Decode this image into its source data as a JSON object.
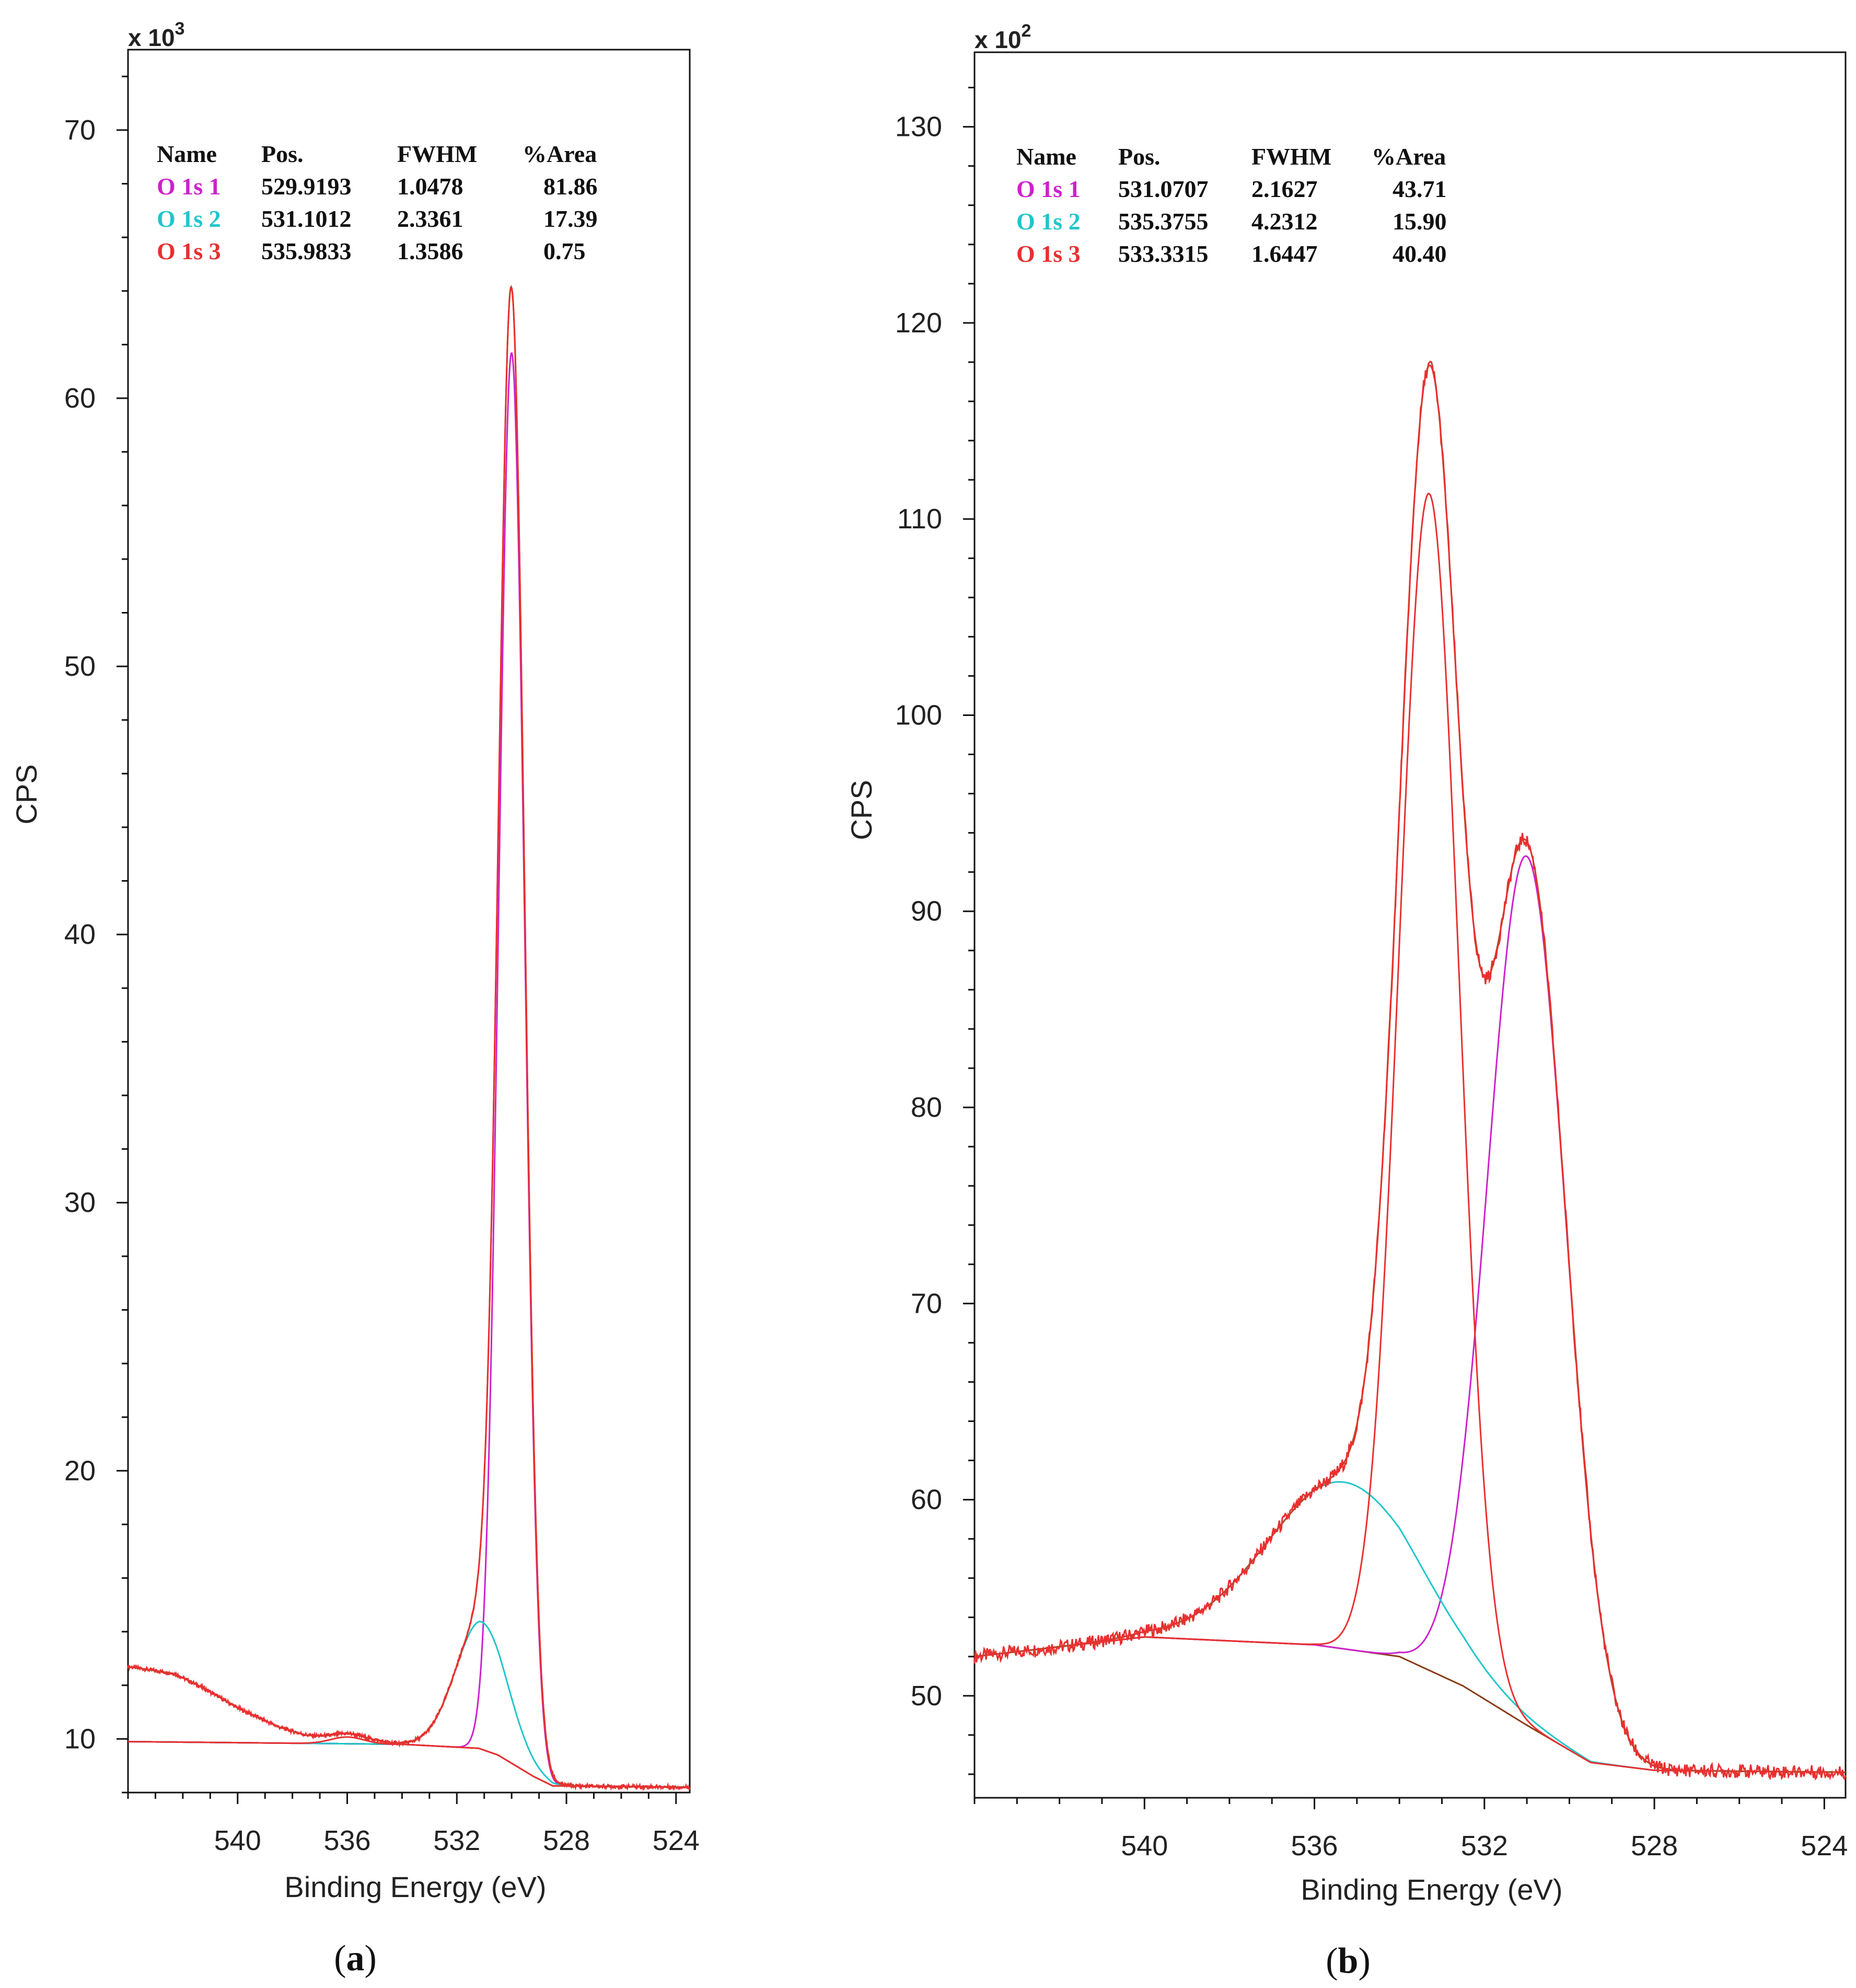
{
  "chart_data": [
    {
      "type": "line",
      "panel_label": "a",
      "xlabel": "Binding Energy (eV)",
      "ylabel": "CPS",
      "y_multiplier_base": "x 10",
      "y_multiplier_exp": "3",
      "xlim": [
        544,
        523.5
      ],
      "ylim": [
        8,
        73
      ],
      "xticks": [
        "540",
        "536",
        "532",
        "528",
        "524"
      ],
      "xtick_values": [
        540,
        536,
        532,
        528,
        524
      ],
      "yticks": [
        "10",
        "20",
        "30",
        "40",
        "50",
        "60",
        "70"
      ],
      "ytick_values": [
        10,
        20,
        30,
        40,
        50,
        60,
        70
      ],
      "y_minor_step": 2,
      "x_minor_step": 1,
      "colors": {
        "data": "#e83030",
        "envelope": "#b24a22",
        "background": "#8a3a14",
        "c1": "#cc22cc",
        "c2": "#1fc6cc",
        "c3": "#e83030"
      },
      "legend": {
        "headers": [
          "Name",
          "Pos.",
          "FWHM",
          "%Area"
        ],
        "rows": [
          {
            "name": "O 1s 1",
            "pos": "529.9193",
            "fwhm": "1.0478",
            "area": "81.86",
            "color": "#cc22cc"
          },
          {
            "name": "O 1s 2",
            "pos": "531.1012",
            "fwhm": "2.3361",
            "area": "17.39",
            "color": "#1fc6cc"
          },
          {
            "name": "O 1s 3",
            "pos": "535.9833",
            "fwhm": "1.3586",
            "area": "0.75",
            "color": "#e83030"
          }
        ]
      },
      "peaks": [
        {
          "center": 530.0,
          "height": 52.6,
          "sigma": 0.47
        },
        {
          "center": 531.1,
          "height": 4.75,
          "sigma": 0.95
        },
        {
          "center": 536.0,
          "height": 0.25,
          "sigma": 0.6
        }
      ],
      "background_points": [
        [
          544,
          9.9
        ],
        [
          534,
          9.8
        ],
        [
          531.2,
          9.65
        ],
        [
          530.5,
          9.4
        ],
        [
          529.2,
          8.6
        ],
        [
          528.5,
          8.25
        ],
        [
          523.5,
          8.2
        ]
      ],
      "raw_extra": [
        [
          544,
          2.8
        ],
        [
          542.3,
          2.55
        ],
        [
          541.2,
          2.0
        ],
        [
          540,
          1.3
        ],
        [
          538.5,
          0.6
        ],
        [
          537.5,
          0.3
        ],
        [
          536.5,
          0.15
        ],
        [
          535,
          0.1
        ],
        [
          534,
          0.0
        ]
      ]
    },
    {
      "type": "line",
      "panel_label": "b",
      "xlabel": "Binding Energy (eV)",
      "ylabel": "CPS",
      "y_multiplier_base": "x 10",
      "y_multiplier_exp": "2",
      "xlim": [
        544,
        523.5
      ],
      "ylim": [
        44.8,
        133.8
      ],
      "xticks": [
        "540",
        "536",
        "532",
        "528",
        "524"
      ],
      "xtick_values": [
        540,
        536,
        532,
        528,
        524
      ],
      "yticks": [
        "50",
        "60",
        "70",
        "80",
        "90",
        "100",
        "110",
        "120",
        "130"
      ],
      "ytick_values": [
        50,
        60,
        70,
        80,
        90,
        100,
        110,
        120,
        130
      ],
      "y_minor_step": 2,
      "x_minor_step": 1,
      "colors": {
        "data": "#e83030",
        "envelope": "#b24a22",
        "background": "#8a3a14",
        "c1": "#cc22cc",
        "c2": "#1fc6cc",
        "c3": "#e83030"
      },
      "legend": {
        "headers": [
          "Name",
          "Pos.",
          "FWHM",
          "%Area"
        ],
        "rows": [
          {
            "name": "O 1s 1",
            "pos": "531.0707",
            "fwhm": "2.1627",
            "area": "43.71",
            "color": "#cc22cc"
          },
          {
            "name": "O 1s 2",
            "pos": "535.3755",
            "fwhm": "4.2312",
            "area": "15.90",
            "color": "#1fc6cc"
          },
          {
            "name": "O 1s 3",
            "pos": "533.3315",
            "fwhm": "1.6447",
            "area": "40.40",
            "color": "#e83030"
          }
        ]
      },
      "peaks": [
        {
          "center": 531.0,
          "height": 44.3,
          "sigma": 0.92
        },
        {
          "center": 535.3,
          "height": 8.5,
          "sigma": 1.8
        },
        {
          "center": 533.3,
          "height": 60.0,
          "sigma": 0.7
        }
      ],
      "background_points": [
        [
          544,
          52.0
        ],
        [
          540,
          53.0
        ],
        [
          536,
          52.6
        ],
        [
          534,
          52.0
        ],
        [
          532.5,
          50.5
        ],
        [
          531,
          48.5
        ],
        [
          529.5,
          46.6
        ],
        [
          528,
          46.2
        ],
        [
          523.5,
          46.1
        ]
      ],
      "raw_extra": []
    }
  ]
}
